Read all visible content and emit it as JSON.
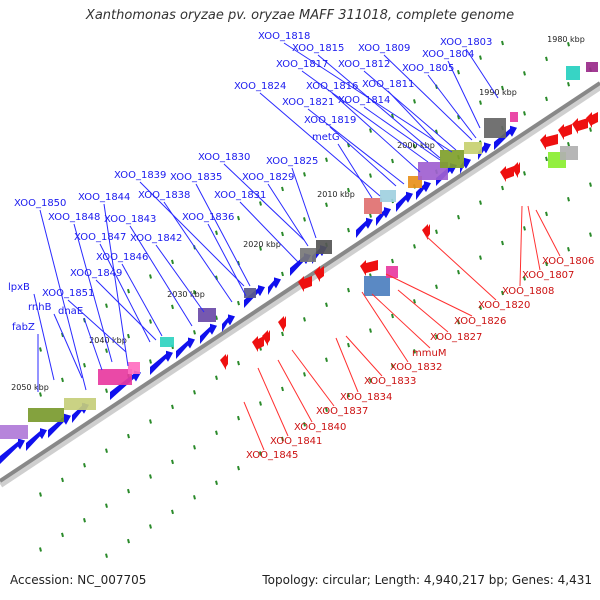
{
  "title": "Xanthomonas oryzae pv. oryzae MAFF 311018, complete genome",
  "footer": {
    "accession": "Accession: NC_007705",
    "stats": "Topology: circular; Length: 4,940,217 bp; Genes: 4,431"
  },
  "colors": {
    "forward_gene": "#1010ee",
    "reverse_gene": "#ee1010",
    "label_line_forward": "#2a2aff",
    "label_line_reverse": "#ff3030",
    "backbone": "#888888",
    "tick": "#2a8a2a"
  },
  "scale_labels": [
    "1980 kbp",
    "1990 kbp",
    "2000 kbp",
    "2010 kbp",
    "2020 kbp",
    "2030 kbp",
    "2040 kbp",
    "2050 kbp"
  ],
  "forward_labels": [
    "XOO_1818",
    "XOO_1815",
    "XOO_1809",
    "XOO_1803",
    "XOO_1804",
    "XOO_1817",
    "XOO_1812",
    "XOO_1805",
    "XOO_1824",
    "XOO_1816",
    "XOO_1811",
    "XOO_1821",
    "XOO_1814",
    "XOO_1819",
    "metG",
    "XOO_1830",
    "XOO_1825",
    "XOO_1839",
    "XOO_1835",
    "XOO_1829",
    "XOO_1850",
    "XOO_1844",
    "XOO_1838",
    "XOO_1831",
    "XOO_1848",
    "XOO_1843",
    "XOO_1836",
    "XOO_1847",
    "XOO_1842",
    "XOO_1846",
    "XOO_1849",
    "lpxB",
    "XOO_1851",
    "rnhB",
    "dnaE",
    "fabZ"
  ],
  "reverse_labels": [
    "XOO_1806",
    "XOO_1807",
    "XOO_1808",
    "XOO_1820",
    "XOO_1826",
    "XOO_1827",
    "mmuM",
    "XOO_1832",
    "XOO_1833",
    "XOO_1834",
    "XOO_1837",
    "XOO_1840",
    "XOO_1841",
    "XOO_1845"
  ]
}
